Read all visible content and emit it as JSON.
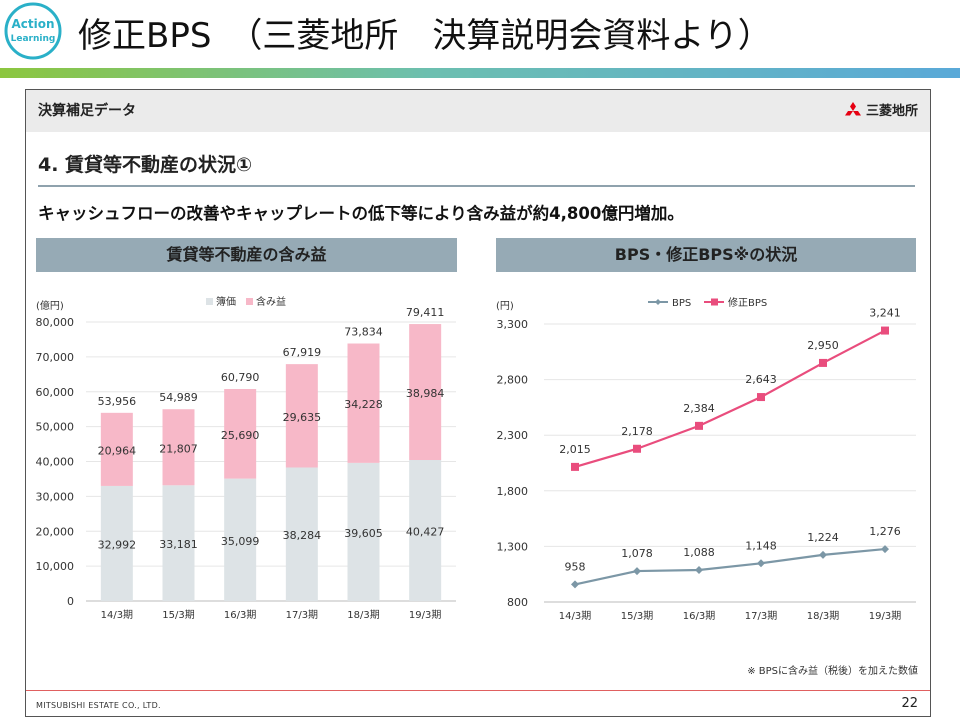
{
  "header": {
    "title": "修正BPS　（三菱地所　決算説明会資料より）",
    "logo_line1": "Action",
    "logo_line2": "Learning"
  },
  "document": {
    "header_title": "決算補足データ",
    "brand": "三菱地所",
    "section_title": "4. 賃貸等不動産の状況①",
    "headline": "キャッシュフローの改善やキャップレートの低下等により含み益が約4,800億円増加。",
    "footnote": "※ BPSに含み益（税後）を加えた数値",
    "company": "MITSUBISHI ESTATE CO., LTD.",
    "page": "22"
  },
  "panels": {
    "left_title": "賃貸等不動産の含み益",
    "right_title": "BPS・修正BPS※の状況"
  },
  "colors": {
    "book": "#dde3e6",
    "gain": "#f7b8c8",
    "bps": "#7c97a6",
    "adj_bps": "#e94d7d",
    "panel": "#96aab5"
  },
  "chart_data": [
    {
      "type": "bar",
      "stacked": true,
      "title": "賃貸等不動産の含み益",
      "unit_label": "(億円)",
      "categories": [
        "14/3期",
        "15/3期",
        "16/3期",
        "17/3期",
        "18/3期",
        "19/3期"
      ],
      "series": [
        {
          "name": "簿価",
          "values": [
            32992,
            33181,
            35099,
            38284,
            39605,
            40427
          ]
        },
        {
          "name": "含み益",
          "values": [
            20964,
            21807,
            25690,
            29635,
            34228,
            38984
          ]
        }
      ],
      "totals": [
        53956,
        54989,
        60790,
        67919,
        73834,
        79411
      ],
      "ylim": [
        0,
        80000
      ],
      "yticks": [
        0,
        10000,
        20000,
        30000,
        40000,
        50000,
        60000,
        70000,
        80000
      ],
      "legend": "top-center"
    },
    {
      "type": "line",
      "title": "BPS・修正BPS※の状況",
      "unit_label": "(円)",
      "categories": [
        "14/3期",
        "15/3期",
        "16/3期",
        "17/3期",
        "18/3期",
        "19/3期"
      ],
      "series": [
        {
          "name": "BPS",
          "values": [
            958,
            1078,
            1088,
            1148,
            1224,
            1276
          ]
        },
        {
          "name": "修正BPS",
          "values": [
            2015,
            2178,
            2384,
            2643,
            2950,
            3241
          ]
        }
      ],
      "ylim": [
        800,
        3300
      ],
      "yticks": [
        800,
        1300,
        1800,
        2300,
        2800,
        3300
      ],
      "legend": "top-center"
    }
  ]
}
